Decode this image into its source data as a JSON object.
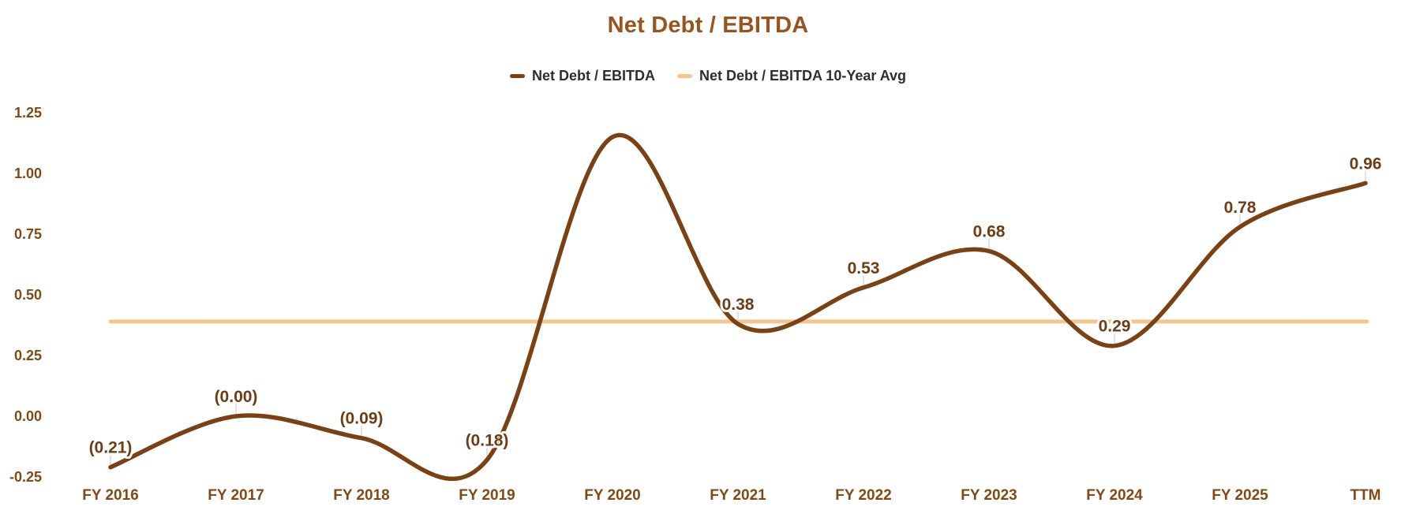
{
  "title": "Net Debt / EBITDA",
  "legend": {
    "items": [
      {
        "label": "Net Debt / EBITDA",
        "color": "#7A4212"
      },
      {
        "label": "Net Debt / EBITDA 10-Year Avg",
        "color": "#F6C48D"
      }
    ]
  },
  "chart_data": {
    "type": "line",
    "title": "Net Debt / EBITDA",
    "categories": [
      "FY 2016",
      "FY 2017",
      "FY 2018",
      "FY 2019",
      "FY 2020",
      "FY 2021",
      "FY 2022",
      "FY 2023",
      "FY 2024",
      "FY 2025",
      "TTM"
    ],
    "series": [
      {
        "name": "Net Debt / EBITDA",
        "type": "spline",
        "color": "#7A4212",
        "values": [
          -0.21,
          0.0,
          -0.09,
          -0.18,
          1.15,
          0.38,
          0.53,
          0.68,
          0.29,
          0.78,
          0.96
        ],
        "point_labels": [
          "(0.21)",
          "(0.00)",
          "(0.09)",
          "(0.18)",
          "",
          "0.38",
          "0.53",
          "0.68",
          "0.29",
          "0.78",
          "0.96"
        ]
      },
      {
        "name": "Net Debt / EBITDA 10-Year Avg",
        "type": "horizontal-line",
        "color": "#F6C48D",
        "value": 0.39
      }
    ],
    "ylim": [
      -0.25,
      1.25
    ],
    "ytick_labels": [
      "1.25",
      "1.00",
      "0.75",
      "0.50",
      "0.25",
      "0.00",
      "-0.25"
    ],
    "grid": false,
    "legend_position": "top-center"
  },
  "colors": {
    "background": "#FFFFFF",
    "title": "#96541E",
    "axis_labels": "#7F4A15",
    "data_labels": "#6D3D14",
    "series_line": "#7A4212",
    "avg_line": "#F6C48D",
    "legend_text": "#2E2E2E",
    "leader_tick": "#E2E2E2"
  }
}
